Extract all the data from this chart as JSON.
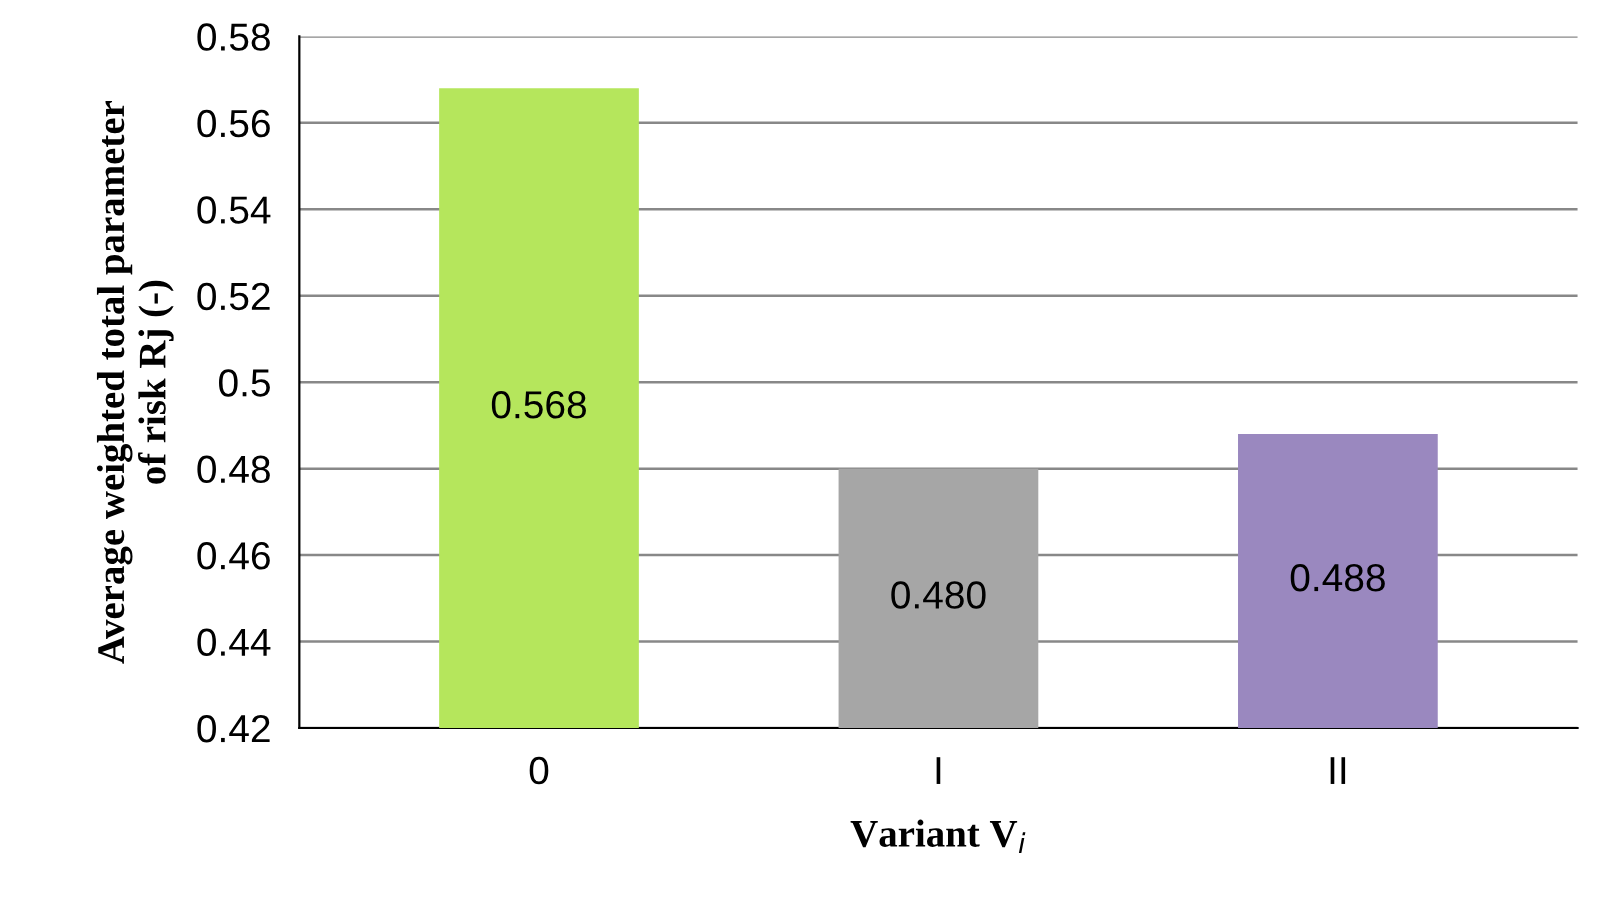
{
  "chart_data": {
    "type": "bar",
    "xlabel": "Variant V$_{i}$",
    "ylabel": "Average weighted total parameter\nof risk Rj (-)",
    "categories": [
      "0",
      "I",
      "II"
    ],
    "values": [
      0.568,
      0.48,
      0.488
    ],
    "colors": [
      "#b5e65c",
      "#a6a6a6",
      "#9a88bf"
    ],
    "value_labels": [
      "0.568",
      "0.480",
      "0.488"
    ],
    "ylim": [
      0.42,
      0.58
    ],
    "yticks": [
      0.42,
      0.44,
      0.46,
      0.48,
      0.5,
      0.52,
      0.54,
      0.56,
      0.58
    ],
    "grid": "y"
  }
}
